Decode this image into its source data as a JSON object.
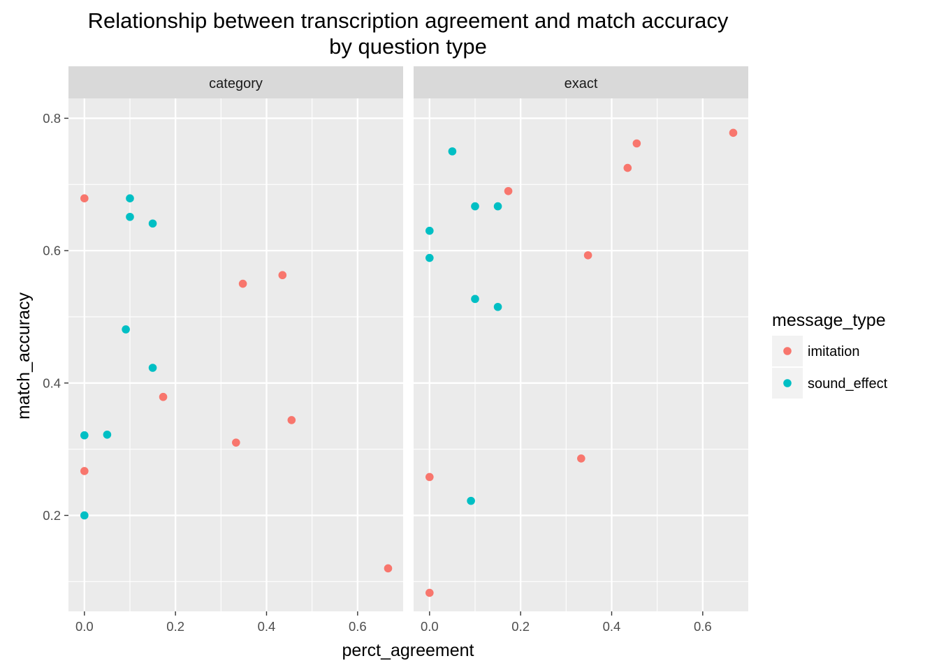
{
  "chart_data": {
    "type": "scatter",
    "title_lines": [
      "Relationship between transcription agreement and match accuracy",
      "by question type"
    ],
    "xlabel": "perct_agreement",
    "ylabel": "match_accuracy",
    "xlim": [
      -0.035,
      0.7
    ],
    "ylim": [
      0.055,
      0.83
    ],
    "x_ticks": [
      0.0,
      0.2,
      0.4,
      0.6
    ],
    "x_tick_labels": [
      "0.0",
      "0.2",
      "0.4",
      "0.6"
    ],
    "y_ticks": [
      0.2,
      0.4,
      0.6,
      0.8
    ],
    "y_tick_labels": [
      "0.2",
      "0.4",
      "0.6",
      "0.8"
    ],
    "grid": true,
    "legend": {
      "title": "message_type",
      "placement": "right",
      "entries": [
        {
          "name": "imitation",
          "color": "#F8766D"
        },
        {
          "name": "sound_effect",
          "color": "#00BFC4"
        }
      ]
    },
    "facets": [
      {
        "label": "category",
        "series": [
          {
            "name": "imitation",
            "points": [
              [
                0.0,
                0.679
              ],
              [
                0.0,
                0.267
              ],
              [
                0.173,
                0.379
              ],
              [
                0.333,
                0.31
              ],
              [
                0.348,
                0.55
              ],
              [
                0.435,
                0.563
              ],
              [
                0.455,
                0.344
              ],
              [
                0.667,
                0.12
              ]
            ]
          },
          {
            "name": "sound_effect",
            "points": [
              [
                0.1,
                0.679
              ],
              [
                0.1,
                0.651
              ],
              [
                0.15,
                0.641
              ],
              [
                0.091,
                0.481
              ],
              [
                0.15,
                0.423
              ],
              [
                0.0,
                0.321
              ],
              [
                0.05,
                0.322
              ],
              [
                0.0,
                0.2
              ]
            ]
          }
        ]
      },
      {
        "label": "exact",
        "series": [
          {
            "name": "imitation",
            "points": [
              [
                0.667,
                0.778
              ],
              [
                0.455,
                0.762
              ],
              [
                0.435,
                0.725
              ],
              [
                0.173,
                0.69
              ],
              [
                0.348,
                0.593
              ],
              [
                0.333,
                0.286
              ],
              [
                0.0,
                0.258
              ],
              [
                0.0,
                0.083
              ]
            ]
          },
          {
            "name": "sound_effect",
            "points": [
              [
                0.05,
                0.75
              ],
              [
                0.1,
                0.667
              ],
              [
                0.15,
                0.667
              ],
              [
                0.0,
                0.63
              ],
              [
                0.0,
                0.589
              ],
              [
                0.1,
                0.527
              ],
              [
                0.15,
                0.515
              ],
              [
                0.091,
                0.222
              ]
            ]
          }
        ]
      }
    ]
  }
}
